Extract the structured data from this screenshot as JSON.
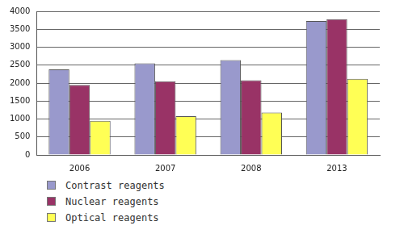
{
  "chart_data": {
    "type": "bar",
    "categories": [
      "2006",
      "2007",
      "2008",
      "2013"
    ],
    "series": [
      {
        "name": "Contrast reagents",
        "color": "#9999cc",
        "values": [
          2380,
          2550,
          2640,
          3730
        ]
      },
      {
        "name": "Nuclear reagents",
        "color": "#993366",
        "values": [
          1950,
          2050,
          2080,
          3780
        ]
      },
      {
        "name": "Optical reagents",
        "color": "#ffff55",
        "values": [
          950,
          1080,
          1180,
          2120
        ]
      }
    ],
    "ylim": [
      0,
      4000
    ],
    "yticks": [
      0,
      500,
      1000,
      1500,
      2000,
      2500,
      3000,
      3500,
      4000
    ],
    "grid": true,
    "legend": "bottom"
  }
}
